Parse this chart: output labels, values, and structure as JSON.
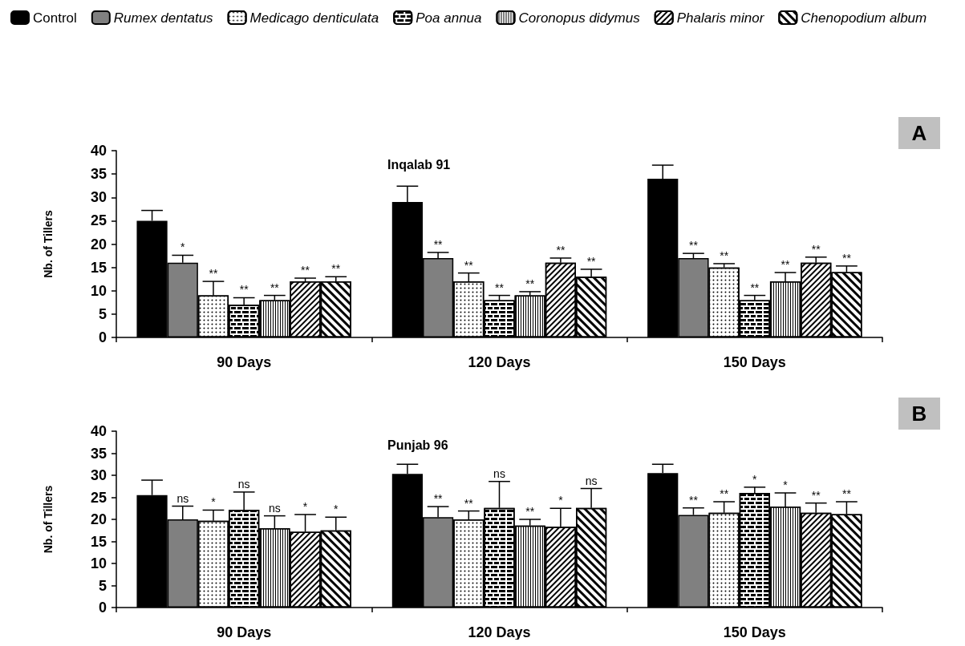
{
  "chart_data": [
    {
      "type": "bar",
      "title": "Inqalab 91",
      "ylabel": "Nb. of Tillers",
      "annotations": [
        "A"
      ],
      "categories": [
        "90 Days",
        "120 Days",
        "150 Days"
      ],
      "ylim": [
        0,
        40
      ],
      "yticks": [
        0,
        5,
        10,
        15,
        20,
        25,
        30,
        35,
        40
      ],
      "grid": false,
      "legend": "top",
      "series": [
        {
          "name": "Control",
          "color": "#000000",
          "values": [
            25,
            29,
            34
          ],
          "errors": [
            [
              25,
              27.2
            ],
            [
              29,
              32.4
            ],
            [
              34,
              36.9
            ]
          ]
        },
        {
          "name": "Rumex dentatus",
          "color": "#808080",
          "values": [
            16,
            17,
            17
          ],
          "errors": [
            [
              16,
              17.6
            ],
            [
              17,
              18.2
            ],
            [
              17,
              18
            ]
          ],
          "value_labels": [
            "*",
            "**",
            "**"
          ]
        },
        {
          "name": "Medicago denticulata",
          "color": "#ffffff",
          "values": [
            9,
            12,
            15
          ],
          "errors": [
            [
              9,
              12
            ],
            [
              12,
              13.8
            ],
            [
              15,
              15.8
            ]
          ],
          "value_labels": [
            "**",
            "**",
            "**"
          ]
        },
        {
          "name": "Poa annua",
          "color": "#ffffff",
          "values": [
            7,
            8,
            8
          ],
          "errors": [
            [
              7,
              8.5
            ],
            [
              8,
              9
            ],
            [
              8,
              9
            ]
          ],
          "value_labels": [
            "**",
            "**",
            "**"
          ]
        },
        {
          "name": "Coronopus didymus",
          "color": "#ffffff",
          "values": [
            8,
            9,
            12
          ],
          "errors": [
            [
              8,
              9
            ],
            [
              9,
              9.8
            ],
            [
              12,
              13.9
            ]
          ],
          "value_labels": [
            "**",
            "**",
            "**"
          ]
        },
        {
          "name": "Phalaris minor",
          "color": "#ffffff",
          "values": [
            12,
            16,
            16
          ],
          "errors": [
            [
              12,
              12.7
            ],
            [
              16,
              17
            ],
            [
              16,
              17.2
            ]
          ],
          "value_labels": [
            "**",
            "**",
            "**"
          ]
        },
        {
          "name": "Chenopodium album",
          "color": "#ffffff",
          "values": [
            12,
            13,
            14
          ],
          "errors": [
            [
              12,
              13
            ],
            [
              13,
              14.6
            ],
            [
              14,
              15.3
            ]
          ],
          "value_labels": [
            "**",
            "**",
            "**"
          ]
        }
      ]
    },
    {
      "type": "bar",
      "title": "Punjab 96",
      "ylabel": "Nb. of Tillers",
      "annotations": [
        "B"
      ],
      "categories": [
        "90 Days",
        "120 Days",
        "150 Days"
      ],
      "ylim": [
        0,
        40
      ],
      "yticks": [
        0,
        5,
        10,
        15,
        20,
        25,
        30,
        35,
        40
      ],
      "grid": false,
      "series": [
        {
          "color": "#000000",
          "values": [
            25.5,
            30.3,
            30.5
          ],
          "errors": [
            [
              25.5,
              28.9
            ],
            [
              30.3,
              32.5
            ],
            [
              30.5,
              32.5
            ]
          ]
        },
        {
          "color": "#808080",
          "values": [
            20,
            20.5,
            21
          ],
          "errors": [
            [
              20,
              23
            ],
            [
              20.5,
              22.9
            ],
            [
              21,
              22.6
            ]
          ],
          "value_labels": [
            "ns",
            "**",
            "**"
          ]
        },
        {
          "color": "#ffffff",
          "values": [
            19.7,
            20,
            21.5
          ],
          "errors": [
            [
              19.7,
              22.1
            ],
            [
              20,
              21.9
            ],
            [
              21.5,
              24
            ]
          ],
          "value_labels": [
            "*",
            "**",
            "**"
          ]
        },
        {
          "color": "#ffffff",
          "values": [
            22.2,
            22.6,
            26
          ],
          "errors": [
            [
              22.2,
              26.2
            ],
            [
              22.6,
              28.6
            ],
            [
              26,
              27.3
            ]
          ],
          "value_labels": [
            "ns",
            "ns",
            "*"
          ]
        },
        {
          "color": "#ffffff",
          "values": [
            18,
            18.6,
            22.9
          ],
          "errors": [
            [
              18,
              20.8
            ],
            [
              18.6,
              20
            ],
            [
              22.9,
              26
            ]
          ],
          "value_labels": [
            "ns",
            "**",
            "*"
          ]
        },
        {
          "color": "#ffffff",
          "values": [
            17.2,
            18.3,
            21.5
          ],
          "errors": [
            [
              17.2,
              21.1
            ],
            [
              18.3,
              22.5
            ],
            [
              21.5,
              23.7
            ]
          ],
          "value_labels": [
            "*",
            "*",
            "**"
          ]
        },
        {
          "color": "#ffffff",
          "values": [
            17.5,
            22.6,
            21.2
          ],
          "errors": [
            [
              17.5,
              20.5
            ],
            [
              22.6,
              27
            ],
            [
              21.2,
              24
            ]
          ],
          "value_labels": [
            "*",
            "ns",
            "**"
          ]
        }
      ]
    }
  ]
}
